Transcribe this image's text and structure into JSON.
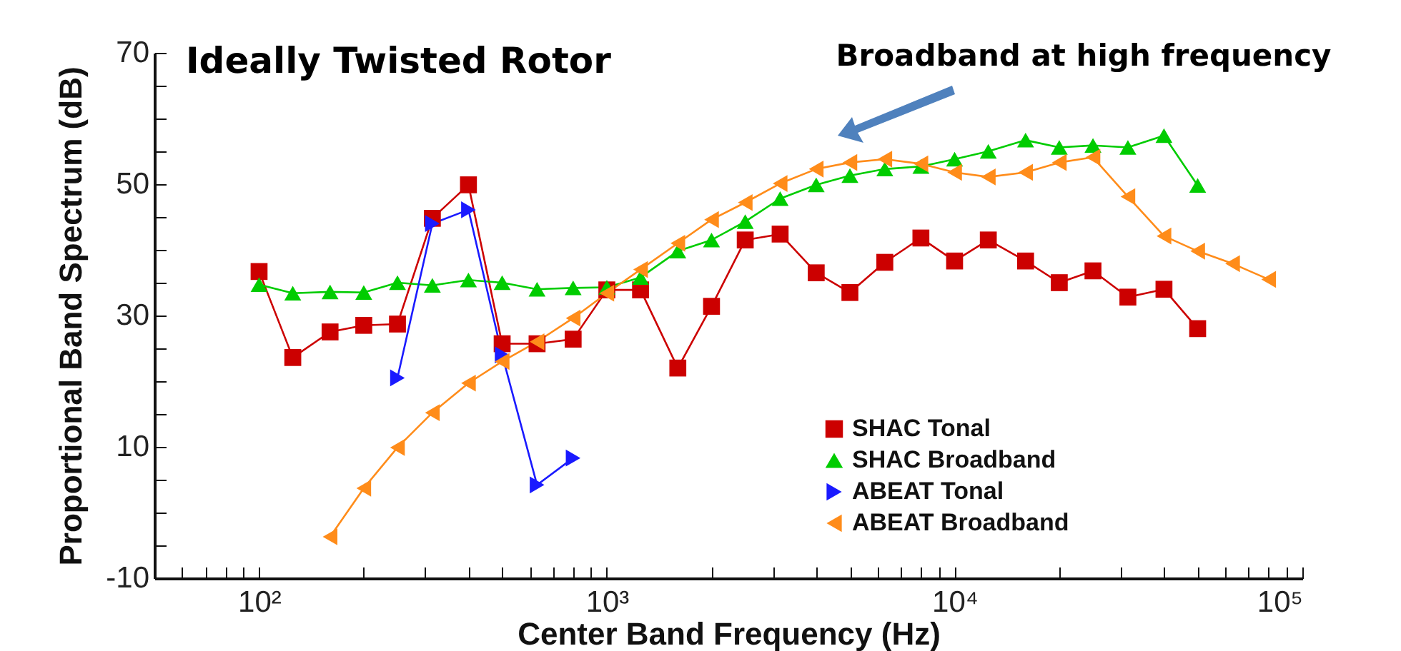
{
  "chart_data": {
    "type": "line",
    "title": "Ideally Twisted Rotor",
    "xlabel": "Center Band Frequency (Hz)",
    "ylabel": "Proportional Band Spectrum (dB)",
    "annotations": [
      "Broadband at high frequency"
    ],
    "log": "x",
    "grid": false,
    "legend": "bottom right",
    "line_style": "solid",
    "xlim": [
      50,
      100000
    ],
    "xticks": [
      {
        "value": 60,
        "label": null
      },
      {
        "value": 70,
        "label": null
      },
      {
        "value": 80,
        "label": null
      },
      {
        "value": 90,
        "label": null
      },
      {
        "value": 100,
        "label": "10²"
      },
      {
        "value": 200,
        "label": null
      },
      {
        "value": 300,
        "label": null
      },
      {
        "value": 400,
        "label": null
      },
      {
        "value": 500,
        "label": null
      },
      {
        "value": 600,
        "label": null
      },
      {
        "value": 700,
        "label": null
      },
      {
        "value": 800,
        "label": null
      },
      {
        "value": 900,
        "label": null
      },
      {
        "value": 1000,
        "label": "10³"
      },
      {
        "value": 2000,
        "label": null
      },
      {
        "value": 3000,
        "label": null
      },
      {
        "value": 4000,
        "label": null
      },
      {
        "value": 5000,
        "label": null
      },
      {
        "value": 6000,
        "label": null
      },
      {
        "value": 7000,
        "label": null
      },
      {
        "value": 8000,
        "label": null
      },
      {
        "value": 9000,
        "label": null
      },
      {
        "value": 10000,
        "label": "10⁴"
      },
      {
        "value": 20000,
        "label": null
      },
      {
        "value": 30000,
        "label": null
      },
      {
        "value": 40000,
        "label": null
      },
      {
        "value": 50000,
        "label": null
      },
      {
        "value": 60000,
        "label": null
      },
      {
        "value": 70000,
        "label": null
      },
      {
        "value": 80000,
        "label": null
      },
      {
        "value": 90000,
        "label": null
      },
      {
        "value": 100000,
        "label": "10⁵"
      }
    ],
    "ylim": [
      -10,
      70
    ],
    "yticks": [
      -10,
      {
        "value": -5,
        "label": null
      },
      {
        "value": 0,
        "label": null
      },
      {
        "value": 5,
        "label": null
      },
      10,
      {
        "value": 15,
        "label": null
      },
      {
        "value": 20,
        "label": null
      },
      {
        "value": 25,
        "label": null
      },
      30,
      {
        "value": 35,
        "label": null
      },
      {
        "value": 40,
        "label": null
      },
      {
        "value": 45,
        "label": null
      },
      50,
      {
        "value": 55,
        "label": null
      },
      {
        "value": 60,
        "label": null
      },
      {
        "value": 65,
        "label": null
      },
      70
    ],
    "series": [
      {
        "name": "SHAC Tonal",
        "color": "#cc0000",
        "marker": "square",
        "x": [
          100,
          125,
          160,
          200,
          250,
          315,
          400,
          500,
          630,
          800,
          1000,
          1250,
          1600,
          2000,
          2500,
          3150,
          4000,
          5000,
          6300,
          8000,
          10000,
          12500,
          16000,
          20000,
          25000,
          31500,
          40000,
          50000
        ],
        "values": [
          36.7,
          23.6,
          27.5,
          28.5,
          28.7,
          44.8,
          49.9,
          25.7,
          25.7,
          26.4,
          33.9,
          33.9,
          22.0,
          31.4,
          41.5,
          42.4,
          36.5,
          33.5,
          38.1,
          41.8,
          38.3,
          41.5,
          38.3,
          35.0,
          36.8,
          32.8,
          34.0,
          28.0
        ]
      },
      {
        "name": "SHAC Broadband",
        "color": "#00cc00",
        "marker": "triangle",
        "x": [
          100,
          125,
          160,
          200,
          250,
          315,
          400,
          500,
          630,
          800,
          1000,
          1250,
          1600,
          2000,
          2500,
          3150,
          4000,
          5000,
          6300,
          8000,
          10000,
          12500,
          16000,
          20000,
          25000,
          31500,
          40000,
          50000
        ],
        "values": [
          34.7,
          33.4,
          33.6,
          33.5,
          35.0,
          34.6,
          35.4,
          35.0,
          34.0,
          34.2,
          34.3,
          35.8,
          39.8,
          41.5,
          44.3,
          47.8,
          49.9,
          51.3,
          52.3,
          52.7,
          53.8,
          55.0,
          56.7,
          55.6,
          55.9,
          55.6,
          57.4,
          49.8
        ]
      },
      {
        "name": "ABEAT Tonal",
        "color": "#1a1aff",
        "marker": "triangle-right",
        "x": [
          250,
          315,
          400,
          500,
          630,
          800
        ],
        "values": [
          20.5,
          44.0,
          46.1,
          24.0,
          4.2,
          8.3
        ]
      },
      {
        "name": "ABEAT Broadband",
        "color": "#ff8c1a",
        "marker": "triangle-left",
        "x": [
          160,
          200,
          250,
          315,
          400,
          500,
          630,
          800,
          1000,
          1250,
          1600,
          2000,
          2500,
          3150,
          4000,
          5000,
          6300,
          8000,
          10000,
          12500,
          16000,
          20000,
          25000,
          31500,
          40000,
          50000,
          63000,
          80000
        ],
        "values": [
          -3.7,
          3.7,
          9.9,
          15.2,
          19.7,
          23.0,
          26.0,
          29.6,
          33.4,
          37.0,
          41.0,
          44.6,
          47.2,
          50.1,
          52.3,
          53.3,
          53.8,
          53.1,
          51.8,
          51.1,
          51.8,
          53.3,
          54.1,
          48.1,
          42.1,
          39.8,
          37.9,
          35.5
        ]
      }
    ]
  }
}
